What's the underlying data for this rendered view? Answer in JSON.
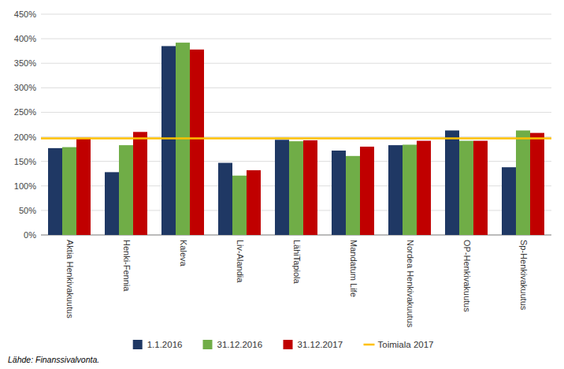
{
  "chart_data": {
    "type": "bar",
    "categories": [
      "Aktia Henkivakuutus",
      "Henki-Fennia",
      "Kaleva",
      "Liv-Alandia",
      "LähiTapiola",
      "Mandatum Life",
      "Nordea Henkivakuutus",
      "OP-Henkivakuutus",
      "Sp-Henkivakuutus"
    ],
    "series": [
      {
        "name": "1.1.2016",
        "color": "#1F3864",
        "values": [
          177,
          128,
          385,
          147,
          194,
          172,
          183,
          213,
          138
        ]
      },
      {
        "name": "31.12.2016",
        "color": "#70AD47",
        "values": [
          179,
          183,
          392,
          121,
          191,
          161,
          184,
          192,
          213
        ]
      },
      {
        "name": "31.12.2017",
        "color": "#C00000",
        "values": [
          198,
          210,
          378,
          132,
          193,
          180,
          192,
          192,
          208
        ]
      }
    ],
    "hlines": [
      {
        "name": "Toimiala 2017",
        "value": 197,
        "color": "#FFC000"
      }
    ],
    "ylim": [
      0,
      450
    ],
    "yticks": [
      {
        "value": 0,
        "label": "0%"
      },
      {
        "value": 50,
        "label": "50%"
      },
      {
        "value": 100,
        "label": "100%"
      },
      {
        "value": 150,
        "label": "150%"
      },
      {
        "value": 200,
        "label": "200%"
      },
      {
        "value": 250,
        "label": "250%"
      },
      {
        "value": 300,
        "label": "300%"
      },
      {
        "value": 350,
        "label": "350%"
      },
      {
        "value": 400,
        "label": "400%"
      },
      {
        "value": 450,
        "label": "450%"
      }
    ],
    "grid": true,
    "legend": "bottom",
    "source": "Lähde: Finanssivalvonta."
  }
}
